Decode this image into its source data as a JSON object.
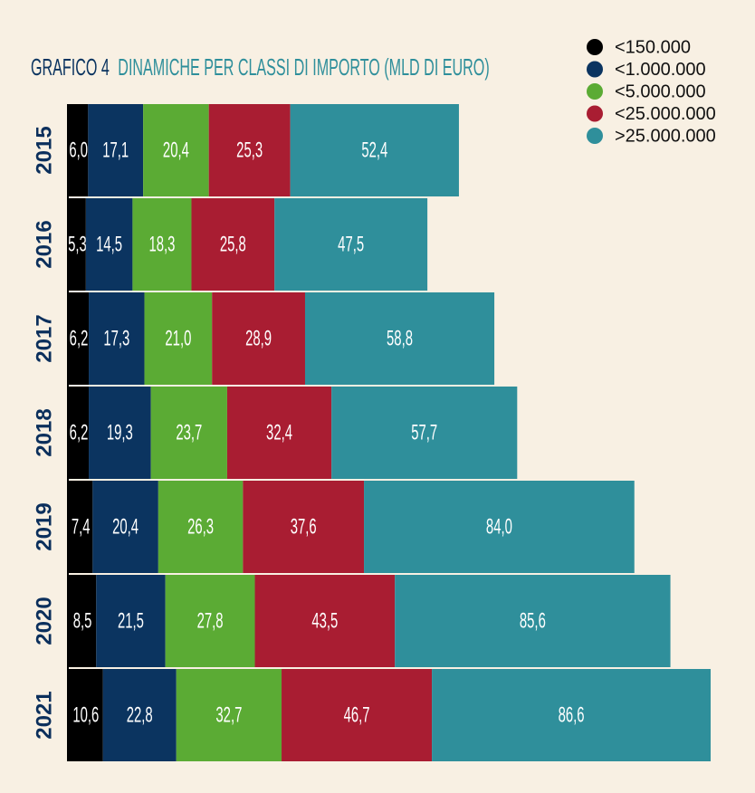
{
  "chart_data": {
    "type": "stacked-bar-horizontal",
    "title": "GRAFICO 4",
    "subtitle": "DINAMICHE PER CLASSI DI IMPORTO (MLD DI EURO)",
    "categories": [
      "2015",
      "2016",
      "2017",
      "2018",
      "2019",
      "2020",
      "2021"
    ],
    "legend": "top-right",
    "series": [
      {
        "name": "<150.000",
        "color": "#000000",
        "values": [
          6.0,
          5.3,
          6.2,
          6.2,
          7.4,
          8.5,
          10.6
        ],
        "value_labels": [
          "6,0",
          "5,3",
          "6,2",
          "6,2",
          "7,4",
          "8,5",
          "10,6"
        ]
      },
      {
        "name": "<1.000.000",
        "color": "#0b3460",
        "values": [
          17.1,
          14.5,
          17.3,
          19.3,
          20.4,
          21.5,
          22.8
        ],
        "value_labels": [
          "17,1",
          "14,5",
          "17,3",
          "19,3",
          "20,4",
          "21,5",
          "22,8"
        ]
      },
      {
        "name": "<5.000.000",
        "color": "#5bab34",
        "values": [
          20.4,
          18.3,
          21.0,
          23.7,
          26.3,
          27.8,
          32.7
        ],
        "value_labels": [
          "20,4",
          "18,3",
          "21,0",
          "23,7",
          "26,3",
          "27,8",
          "32,7"
        ]
      },
      {
        "name": "<25.000.000",
        "color": "#a91d32",
        "values": [
          25.3,
          25.8,
          28.9,
          32.4,
          37.6,
          43.5,
          46.7
        ],
        "value_labels": [
          "25,3",
          "25,8",
          "28,9",
          "32,4",
          "37,6",
          "43,5",
          "46,7"
        ]
      },
      {
        "name": ">25.000.000",
        "color": "#2f8f9b",
        "values": [
          52.4,
          47.5,
          58.8,
          57.7,
          84.0,
          85.6,
          86.6
        ],
        "value_labels": [
          "52,4",
          "47,5",
          "58,8",
          "57,7",
          "84,0",
          "85,6",
          "86,6"
        ]
      }
    ]
  }
}
